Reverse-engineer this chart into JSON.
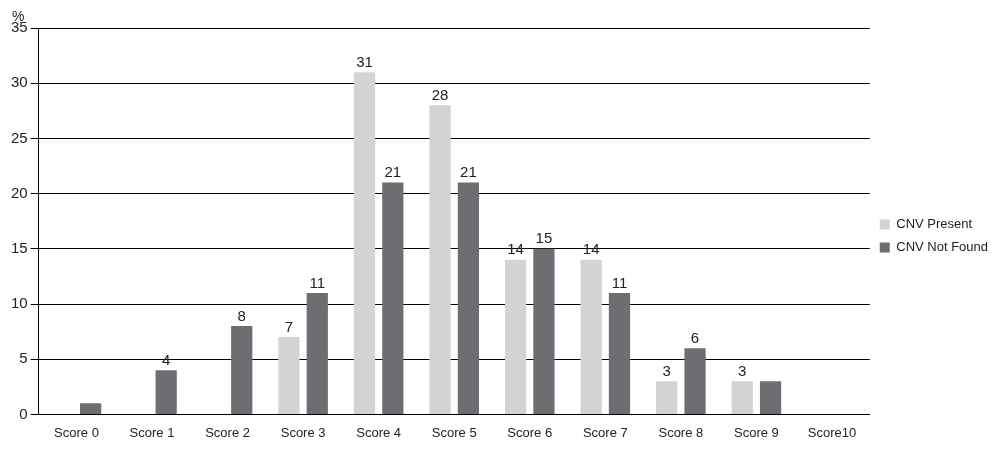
{
  "chart_data": {
    "type": "bar",
    "ylabel": "%",
    "categories": [
      "Score 0",
      "Score 1",
      "Score 2",
      "Score 3",
      "Score 4",
      "Score 5",
      "Score 6",
      "Score 7",
      "Score 8",
      "Score 9",
      "Score10"
    ],
    "series": [
      {
        "name": "CNV Present",
        "color": "#d3d3d3",
        "values": [
          0,
          0,
          0,
          7,
          31,
          28,
          14,
          14,
          3,
          3,
          0
        ],
        "value_labels": [
          null,
          null,
          null,
          "7",
          "31",
          "28",
          "14",
          "14",
          "3",
          "3",
          null
        ]
      },
      {
        "name": "CNV Not Found",
        "color": "#6d6e71",
        "values": [
          1,
          4,
          8,
          11,
          21,
          21,
          15,
          11,
          6,
          3,
          0
        ],
        "value_labels": [
          null,
          "4",
          "8",
          "11",
          "21",
          "21",
          "15",
          "11",
          "6",
          null,
          null
        ]
      }
    ],
    "ylim": [
      0,
      35
    ],
    "yticks": [
      0,
      5,
      10,
      15,
      20,
      25,
      30,
      35
    ],
    "grid": "y",
    "legend": "right"
  }
}
